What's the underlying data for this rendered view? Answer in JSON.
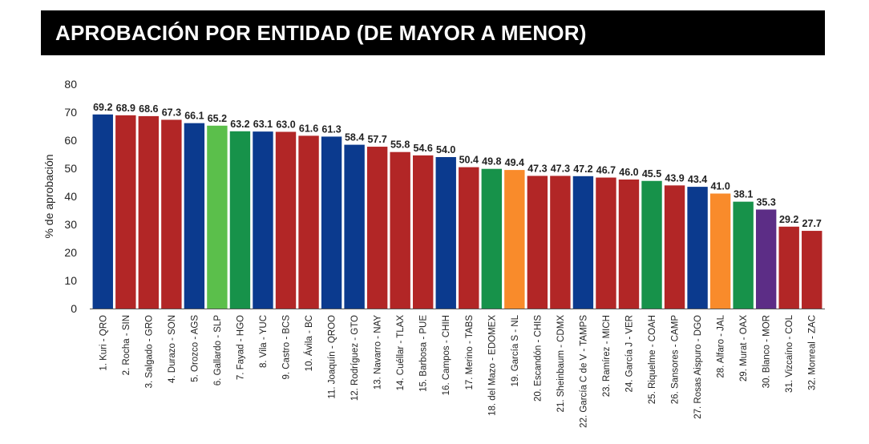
{
  "header": {
    "title": "APROBACIÓN POR ENTIDAD (DE MAYOR A MENOR)"
  },
  "chart_data": {
    "type": "bar",
    "title": "APROBACIÓN POR ENTIDAD (DE MAYOR A MENOR)",
    "xlabel": "",
    "ylabel": "% de aprobación",
    "ylim": [
      0,
      80
    ],
    "yticks": [
      0,
      10,
      20,
      30,
      40,
      50,
      60,
      70,
      80
    ],
    "grid": false,
    "legend": "none",
    "categories": [
      "1. Kuri - QRO",
      "2. Rocha - SIN",
      "3. Salgado - GRO",
      "4. Durazo - SON",
      "5. Orozco - AGS",
      "6. Gallardo - SLP",
      "7. Fayad - HGO",
      "8. Vila - YUC",
      "9. Castro - BCS",
      "10. Ávila - BC",
      "11. Joaquín - QROO",
      "12. Rodríguez - GTO",
      "13. Navarro - NAY",
      "14. Cuéllar - TLAX",
      "15. Barbosa - PUE",
      "16. Campos - CHIH",
      "17. Merino - TABS",
      "18. del Mazo - EDOMEX",
      "19. García S - NL",
      "20. Escandón - CHIS",
      "21. Sheinbaum - CDMX",
      "22. García C de V - TAMPS",
      "23. Ramírez - MICH",
      "24. García J - VER",
      "25. Riquelme - COAH",
      "26. Sansores - CAMP",
      "27. Rosas Aispuro - DGO",
      "28. Alfaro - JAL",
      "29. Murat - OAX",
      "30. Blanco - MOR",
      "31. Vizcaíno - COL",
      "32. Monreal - ZAC"
    ],
    "values": [
      69.2,
      68.9,
      68.6,
      67.3,
      66.1,
      65.2,
      63.2,
      63.1,
      63.0,
      61.6,
      61.3,
      58.4,
      57.7,
      55.8,
      54.6,
      54.0,
      50.4,
      49.8,
      49.4,
      47.3,
      47.3,
      47.2,
      46.7,
      46.0,
      45.5,
      43.9,
      43.4,
      41.0,
      38.1,
      35.3,
      29.2,
      27.7
    ],
    "value_labels": [
      "69.2",
      "68.9",
      "68.6",
      "67.3",
      "66.1",
      "65.2",
      "63.2",
      "63.1",
      "63.0",
      "61.6",
      "61.3",
      "58.4",
      "57.7",
      "55.8",
      "54.6",
      "54.0",
      "50.4",
      "49.8",
      "49.4",
      "47.3",
      "47.3",
      "47.2",
      "46.7",
      "46.0",
      "45.5",
      "43.9",
      "43.4",
      "41.0",
      "38.1",
      "35.3",
      "29.2",
      "27.7"
    ],
    "colors": [
      "#0b3a8e",
      "#b22626",
      "#b22626",
      "#b22626",
      "#0b3a8e",
      "#5bbf4b",
      "#17924a",
      "#0b3a8e",
      "#b22626",
      "#b22626",
      "#0b3a8e",
      "#0b3a8e",
      "#b22626",
      "#b22626",
      "#b22626",
      "#0b3a8e",
      "#b22626",
      "#17924a",
      "#f98b2b",
      "#b22626",
      "#b22626",
      "#0b3a8e",
      "#b22626",
      "#b22626",
      "#17924a",
      "#b22626",
      "#0b3a8e",
      "#f98b2b",
      "#17924a",
      "#5c2d86",
      "#b22626",
      "#b22626"
    ]
  }
}
